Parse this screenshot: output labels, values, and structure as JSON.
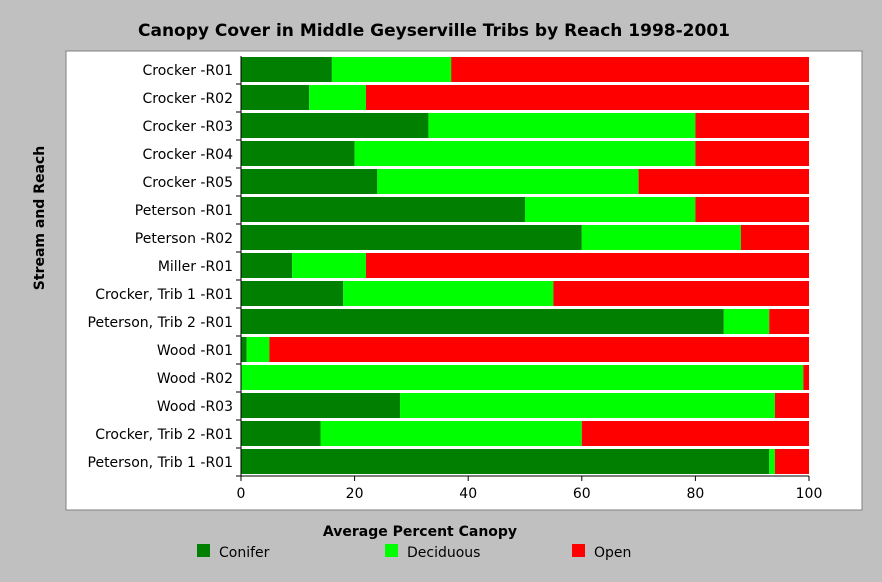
{
  "chart_data": {
    "type": "bar",
    "orientation": "horizontal",
    "stacked": true,
    "title": "Canopy Cover in Middle Geyserville Tribs by Reach 1998-2001",
    "xlabel": "Average Percent Canopy",
    "ylabel": "Stream and Reach",
    "xlim": [
      0,
      100
    ],
    "xticks": [
      0,
      20,
      40,
      60,
      80,
      100
    ],
    "grid": false,
    "legend_position": "bottom",
    "categories": [
      "Crocker -R01",
      "Crocker -R02",
      "Crocker -R03",
      "Crocker -R04",
      "Crocker -R05",
      "Peterson -R01",
      "Peterson -R02",
      "Miller -R01",
      "Crocker, Trib 1 -R01",
      "Peterson, Trib 2 -R01",
      "Wood -R01",
      "Wood -R02",
      "Wood -R03",
      "Crocker, Trib 2 -R01",
      "Peterson, Trib 1 -R01"
    ],
    "series": [
      {
        "name": "Conifer",
        "color": "#007f00",
        "values": [
          16,
          12,
          33,
          20,
          24,
          50,
          60,
          9,
          18,
          85,
          1,
          0,
          28,
          14,
          93
        ]
      },
      {
        "name": "Deciduous",
        "color": "#00ff00",
        "values": [
          21,
          10,
          47,
          60,
          46,
          30,
          28,
          13,
          37,
          8,
          4,
          99,
          66,
          46,
          1
        ]
      },
      {
        "name": "Open",
        "color": "#ff0000",
        "values": [
          63,
          78,
          20,
          20,
          30,
          20,
          12,
          78,
          45,
          7,
          95,
          1,
          6,
          40,
          6
        ]
      }
    ]
  }
}
